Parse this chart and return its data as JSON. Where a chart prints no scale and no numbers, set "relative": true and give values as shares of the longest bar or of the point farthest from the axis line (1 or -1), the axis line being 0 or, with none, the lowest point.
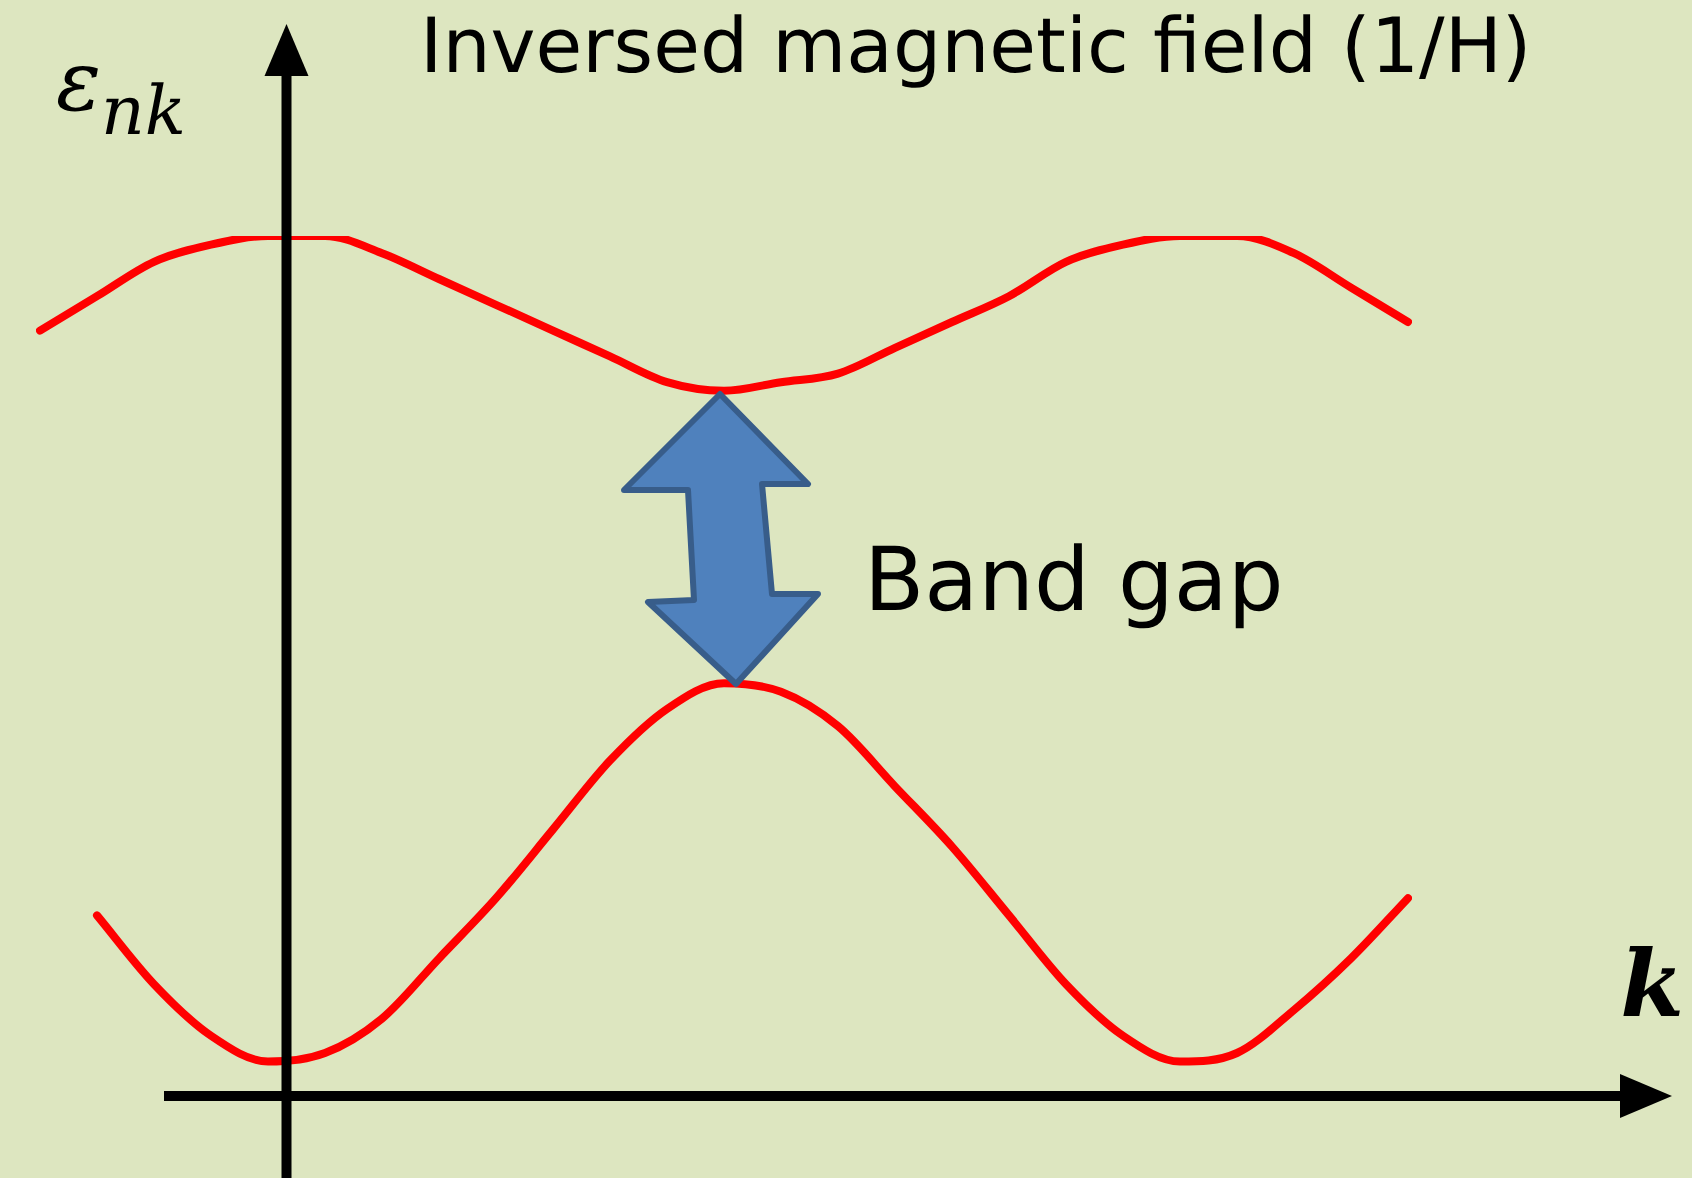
{
  "chart_data": {
    "type": "line",
    "relative": true,
    "title": "Inversed magnetic field (1/H)",
    "xlabel": "k",
    "ylabel": "ε$_{nk}$",
    "annotations": [
      "Band gap"
    ],
    "legend": false,
    "marker": "none",
    "line_style": "solid",
    "categories": [
      null,
      null,
      null,
      null,
      null,
      null,
      null,
      null,
      null,
      null,
      null,
      null,
      null,
      null,
      null,
      null,
      null,
      null,
      null,
      null,
      null,
      null,
      null,
      null,
      null
    ],
    "series": [
      {
        "color": "#ff0000",
        "values": [
          0.89,
          0.93,
          0.97,
          0.99,
          1.0,
          1.0,
          0.98,
          0.95,
          0.92,
          0.89,
          0.86,
          0.83,
          0.82,
          0.83,
          0.84,
          0.87,
          0.9,
          0.93,
          0.97,
          0.99,
          1.0,
          1.0,
          0.98,
          0.94,
          0.9
        ]
      },
      {
        "color": "#ff0000",
        "values": [
          null,
          0.21,
          0.13,
          0.07,
          0.04,
          0.05,
          0.09,
          0.16,
          0.23,
          0.31,
          0.39,
          0.45,
          0.48,
          0.47,
          0.43,
          0.36,
          0.29,
          0.21,
          0.13,
          0.07,
          0.04,
          0.05,
          0.1,
          0.16,
          0.23
        ]
      }
    ]
  }
}
